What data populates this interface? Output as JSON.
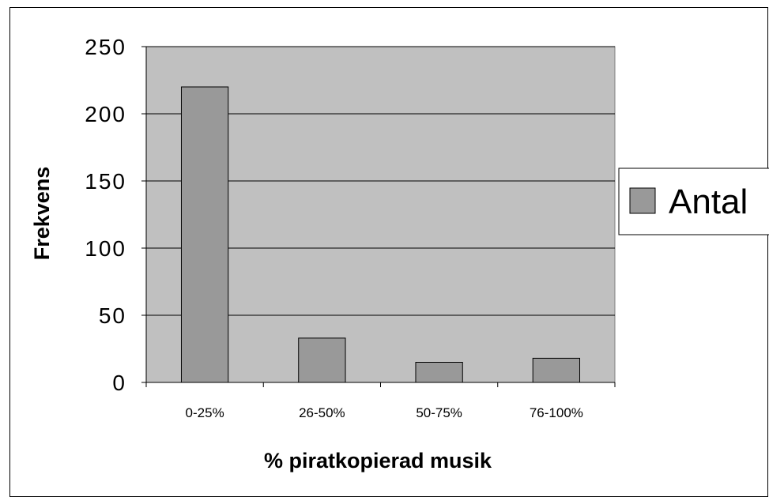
{
  "chart_data": {
    "type": "bar",
    "title": "",
    "xlabel": "% piratkopierad musik",
    "ylabel": "Frekvens",
    "categories": [
      "0-25%",
      "26-50%",
      "50-75%",
      "76-100%"
    ],
    "series": [
      {
        "name": "Antal",
        "values": [
          220,
          33,
          15,
          18
        ],
        "color": "#999999"
      }
    ],
    "ylim": [
      0,
      250
    ],
    "yticks": [
      "0",
      "50",
      "100",
      "150",
      "200",
      "250"
    ],
    "grid": true,
    "plot_background": "#c0c0c0",
    "legend": {
      "position": "right",
      "entries": [
        "Antal"
      ]
    }
  }
}
